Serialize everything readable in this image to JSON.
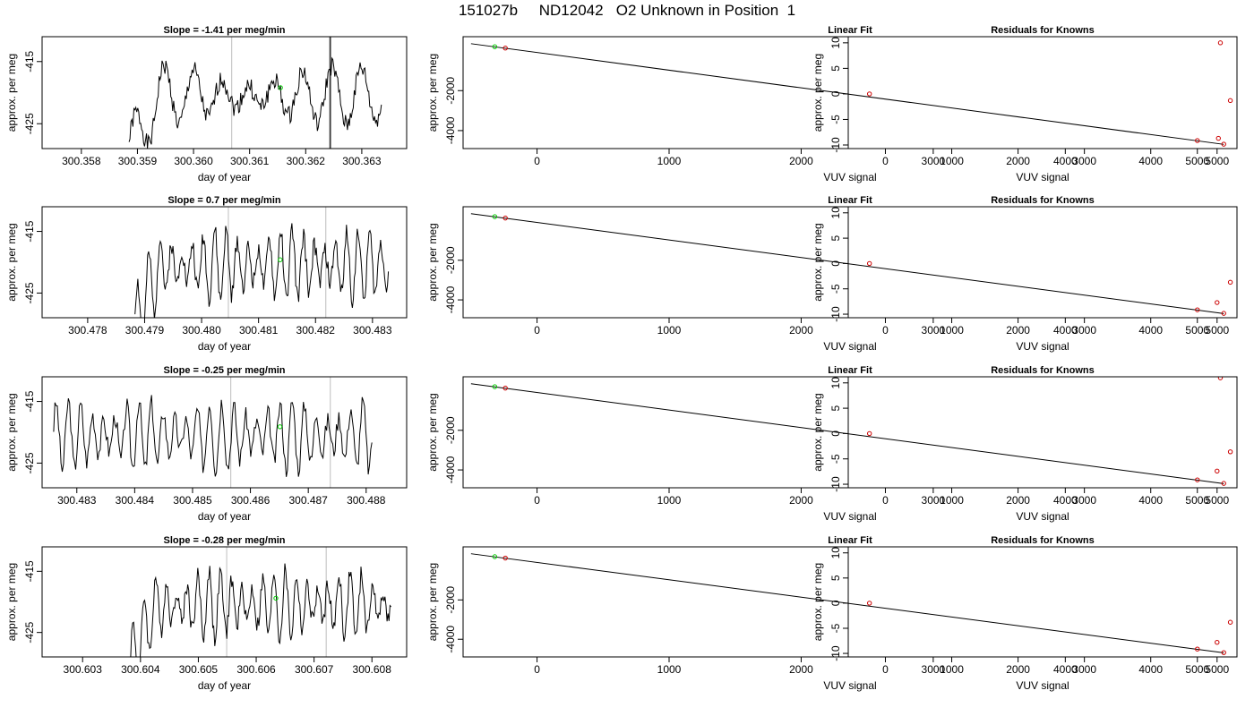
{
  "page": {
    "title": "151027b     ND12042   O2 Unknown in Position  1"
  },
  "chart_data": [
    {
      "type": "line",
      "title": "Slope =  -1.41  per meg/min",
      "xlabel": "day of year",
      "ylabel": "approx. per meg",
      "xlim": [
        300.3573,
        300.3638
      ],
      "ylim": [
        -429,
        -411
      ],
      "xticks": [
        "300.358",
        "300.359",
        "300.360",
        "300.361",
        "300.362",
        "300.363"
      ],
      "yticks": [
        "-415",
        "-425"
      ],
      "vlines_gray": [
        300.36068,
        300.36242
      ],
      "vlines_black": [
        300.36244
      ],
      "start": 300.35885,
      "end": 300.36335,
      "seed": 1,
      "ramp": 0.12,
      "periods": 9,
      "amp": 3.2,
      "green_point": {
        "x": 300.36155,
        "y": -419.2
      }
    },
    {
      "type": "line",
      "title": "Linear Fit",
      "xlabel": "VUV signal",
      "ylabel": "approx. per meg",
      "xlim": [
        -560,
        5300
      ],
      "ylim": [
        -4900,
        700
      ],
      "xticks": [
        "0",
        "1000",
        "2000",
        "3000",
        "4000",
        "5000"
      ],
      "yticks": [
        "-2000",
        "-4000"
      ],
      "fit_line": {
        "x": [
          -500,
          5200
        ],
        "y": [
          350,
          -4690
        ]
      },
      "points_knowns": {
        "x": [
          -240,
          5000,
          5200
        ],
        "y": [
          130,
          -4500,
          -4680
        ]
      },
      "points_unknown": {
        "x": [
          -320
        ],
        "y": [
          200
        ]
      }
    },
    {
      "type": "scatter",
      "title": "Residuals for Knowns",
      "xlabel": "VUV signal",
      "ylabel": "approx. per meg",
      "xlim": [
        -560,
        5300
      ],
      "ylim": [
        -10.7,
        11.2
      ],
      "xticks": [
        "0",
        "1000",
        "2000",
        "3000",
        "4000",
        "5000"
      ],
      "yticks": [
        "10",
        "5",
        "0",
        "-5",
        "-10"
      ],
      "x": [
        -240,
        5050,
        5200,
        5020
      ],
      "y": [
        0,
        10,
        -1.3,
        -8.7
      ]
    },
    {
      "type": "line",
      "title": "Slope =  0.7  per meg/min",
      "xlabel": "day of year",
      "ylabel": "approx. per meg",
      "xlim": [
        300.4772,
        300.4836
      ],
      "ylim": [
        -429,
        -411
      ],
      "xticks": [
        "300.478",
        "300.479",
        "300.480",
        "300.481",
        "300.482",
        "300.483"
      ],
      "yticks": [
        "-415",
        "-425"
      ],
      "vlines_gray": [
        300.48047,
        300.48218
      ],
      "vlines_black": [],
      "start": 300.47883,
      "end": 300.48328,
      "seed": 2,
      "ramp": 0.1,
      "periods": 23,
      "amp": 4.2,
      "green_point": {
        "x": 300.48138,
        "y": -419.6
      }
    },
    {
      "type": "line",
      "title": "Linear Fit",
      "xlabel": "VUV signal",
      "ylabel": "approx. per meg",
      "xlim": [
        -560,
        5300
      ],
      "ylim": [
        -4900,
        700
      ],
      "xticks": [
        "0",
        "1000",
        "2000",
        "3000",
        "4000",
        "5000"
      ],
      "yticks": [
        "-2000",
        "-4000"
      ],
      "fit_line": {
        "x": [
          -500,
          5200
        ],
        "y": [
          350,
          -4690
        ]
      },
      "points_knowns": {
        "x": [
          -240,
          5000,
          5200
        ],
        "y": [
          130,
          -4500,
          -4680
        ]
      },
      "points_unknown": {
        "x": [
          -320
        ],
        "y": [
          200
        ]
      }
    },
    {
      "type": "scatter",
      "title": "Residuals for Knowns",
      "xlabel": "VUV signal",
      "ylabel": "approx. per meg",
      "xlim": [
        -560,
        5300
      ],
      "ylim": [
        -10.7,
        11.2
      ],
      "xticks": [
        "0",
        "1000",
        "2000",
        "3000",
        "4000",
        "5000"
      ],
      "yticks": [
        "10",
        "5",
        "0",
        "-5",
        "-10"
      ],
      "x": [
        -240,
        5200,
        5000
      ],
      "y": [
        0,
        -3.7,
        -7.7
      ]
    },
    {
      "type": "line",
      "title": "Slope =  -0.25  per meg/min",
      "xlabel": "day of year",
      "ylabel": "approx. per meg",
      "xlim": [
        300.4824,
        300.4887
      ],
      "ylim": [
        -429,
        -411
      ],
      "xticks": [
        "300.483",
        "300.484",
        "300.485",
        "300.486",
        "300.487",
        "300.488"
      ],
      "yticks": [
        "-415",
        "-425"
      ],
      "vlines_gray": [
        300.48566,
        300.48738
      ],
      "vlines_black": [],
      "start": 300.4826,
      "end": 300.4881,
      "seed": 3,
      "ramp": 0.0,
      "periods": 27,
      "amp": 4.0,
      "green_point": {
        "x": 300.48651,
        "y": -419.1
      }
    },
    {
      "type": "line",
      "title": "Linear Fit",
      "xlabel": "VUV signal",
      "ylabel": "approx. per meg",
      "xlim": [
        -560,
        5300
      ],
      "ylim": [
        -4900,
        700
      ],
      "xticks": [
        "0",
        "1000",
        "2000",
        "3000",
        "4000",
        "5000"
      ],
      "yticks": [
        "-2000",
        "-4000"
      ],
      "fit_line": {
        "x": [
          -500,
          5200
        ],
        "y": [
          350,
          -4690
        ]
      },
      "points_knowns": {
        "x": [
          -240,
          5000,
          5200
        ],
        "y": [
          130,
          -4500,
          -4680
        ]
      },
      "points_unknown": {
        "x": [
          -320
        ],
        "y": [
          200
        ]
      }
    },
    {
      "type": "scatter",
      "title": "Residuals for Knowns",
      "xlabel": "VUV signal",
      "ylabel": "approx. per meg",
      "xlim": [
        -560,
        5300
      ],
      "ylim": [
        -10.7,
        11.2
      ],
      "xticks": [
        "0",
        "1000",
        "2000",
        "3000",
        "4000",
        "5000"
      ],
      "yticks": [
        "10",
        "5",
        "0",
        "-5",
        "-10"
      ],
      "x": [
        -240,
        5200,
        5000,
        5050
      ],
      "y": [
        0,
        -3.6,
        -7.4,
        11.0
      ]
    },
    {
      "type": "line",
      "title": "Slope =  -0.28  per meg/min",
      "xlabel": "day of year",
      "ylabel": "approx. per meg",
      "xlim": [
        300.6023,
        300.6086
      ],
      "ylim": [
        -429,
        -411
      ],
      "xticks": [
        "300.603",
        "300.604",
        "300.605",
        "300.606",
        "300.607",
        "300.608"
      ],
      "yticks": [
        "-415",
        "-425"
      ],
      "vlines_gray": [
        300.60549,
        300.60721
      ],
      "vlines_black": [],
      "start": 300.60383,
      "end": 300.60833,
      "seed": 4,
      "ramp": 0.1,
      "periods": 24,
      "amp": 4.0,
      "green_point": {
        "x": 300.60634,
        "y": -419.4
      }
    },
    {
      "type": "line",
      "title": "Linear Fit",
      "xlabel": "VUV signal",
      "ylabel": "approx. per meg",
      "xlim": [
        -560,
        5300
      ],
      "ylim": [
        -4900,
        700
      ],
      "xticks": [
        "0",
        "1000",
        "2000",
        "3000",
        "4000",
        "5000"
      ],
      "yticks": [
        "-2000",
        "-4000"
      ],
      "fit_line": {
        "x": [
          -500,
          5200
        ],
        "y": [
          350,
          -4690
        ]
      },
      "points_knowns": {
        "x": [
          -240,
          5000,
          5200
        ],
        "y": [
          130,
          -4500,
          -4680
        ]
      },
      "points_unknown": {
        "x": [
          -320
        ],
        "y": [
          200
        ]
      }
    },
    {
      "type": "scatter",
      "title": "Residuals for Knowns",
      "xlabel": "VUV signal",
      "ylabel": "approx. per meg",
      "xlim": [
        -560,
        5300
      ],
      "ylim": [
        -10.7,
        11.2
      ],
      "xticks": [
        "0",
        "1000",
        "2000",
        "3000",
        "4000",
        "5000"
      ],
      "yticks": [
        "10",
        "5",
        "0",
        "-5",
        "-10"
      ],
      "x": [
        -240,
        5200,
        5000
      ],
      "y": [
        0,
        -3.8,
        -7.8
      ]
    }
  ],
  "colors": {
    "trace": "#000000",
    "fit_line": "#000000",
    "gray_line": "#c8c8c8",
    "known_points": "#cc0000",
    "unknown_points": "#00cc00",
    "box": "#000000"
  }
}
